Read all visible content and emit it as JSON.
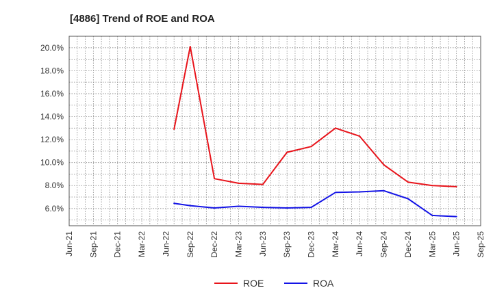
{
  "chart_data": {
    "type": "line",
    "title": "[4886]  Trend of ROE and ROA",
    "x_ticks": [
      "Jun-21",
      "Sep-21",
      "Dec-21",
      "Mar-22",
      "Jun-22",
      "Sep-22",
      "Dec-22",
      "Mar-23",
      "Jun-23",
      "Sep-23",
      "Dec-23",
      "Mar-24",
      "Jun-24",
      "Sep-24",
      "Dec-24",
      "Mar-25",
      "Jun-25",
      "Sep-25"
    ],
    "y_ticks": [
      "6.0%",
      "8.0%",
      "10.0%",
      "12.0%",
      "14.0%",
      "16.0%",
      "18.0%",
      "20.0%"
    ],
    "y_tick_values": [
      6,
      8,
      10,
      12,
      14,
      16,
      18,
      20
    ],
    "ylim": [
      4.5,
      21.0
    ],
    "grid": true,
    "legend_position": "bottom",
    "series": [
      {
        "name": "ROE",
        "color": "#e8141b",
        "x": [
          "Jul-22",
          "Sep-22",
          "Dec-22",
          "Mar-23",
          "Jun-23",
          "Sep-23",
          "Dec-23",
          "Mar-24",
          "Jun-24",
          "Sep-24",
          "Dec-24",
          "Mar-25",
          "Jun-25"
        ],
        "values": [
          12.9,
          20.1,
          8.6,
          8.2,
          8.1,
          10.9,
          11.4,
          13.0,
          12.3,
          9.8,
          8.3,
          8.0,
          7.9
        ]
      },
      {
        "name": "ROA",
        "color": "#1414e6",
        "x": [
          "Jul-22",
          "Sep-22",
          "Dec-22",
          "Mar-23",
          "Jun-23",
          "Sep-23",
          "Dec-23",
          "Mar-24",
          "Jun-24",
          "Sep-24",
          "Dec-24",
          "Mar-25",
          "Jun-25"
        ],
        "values": [
          6.45,
          6.25,
          6.05,
          6.2,
          6.1,
          6.05,
          6.1,
          7.4,
          7.45,
          7.55,
          6.85,
          5.4,
          5.3
        ]
      }
    ]
  }
}
